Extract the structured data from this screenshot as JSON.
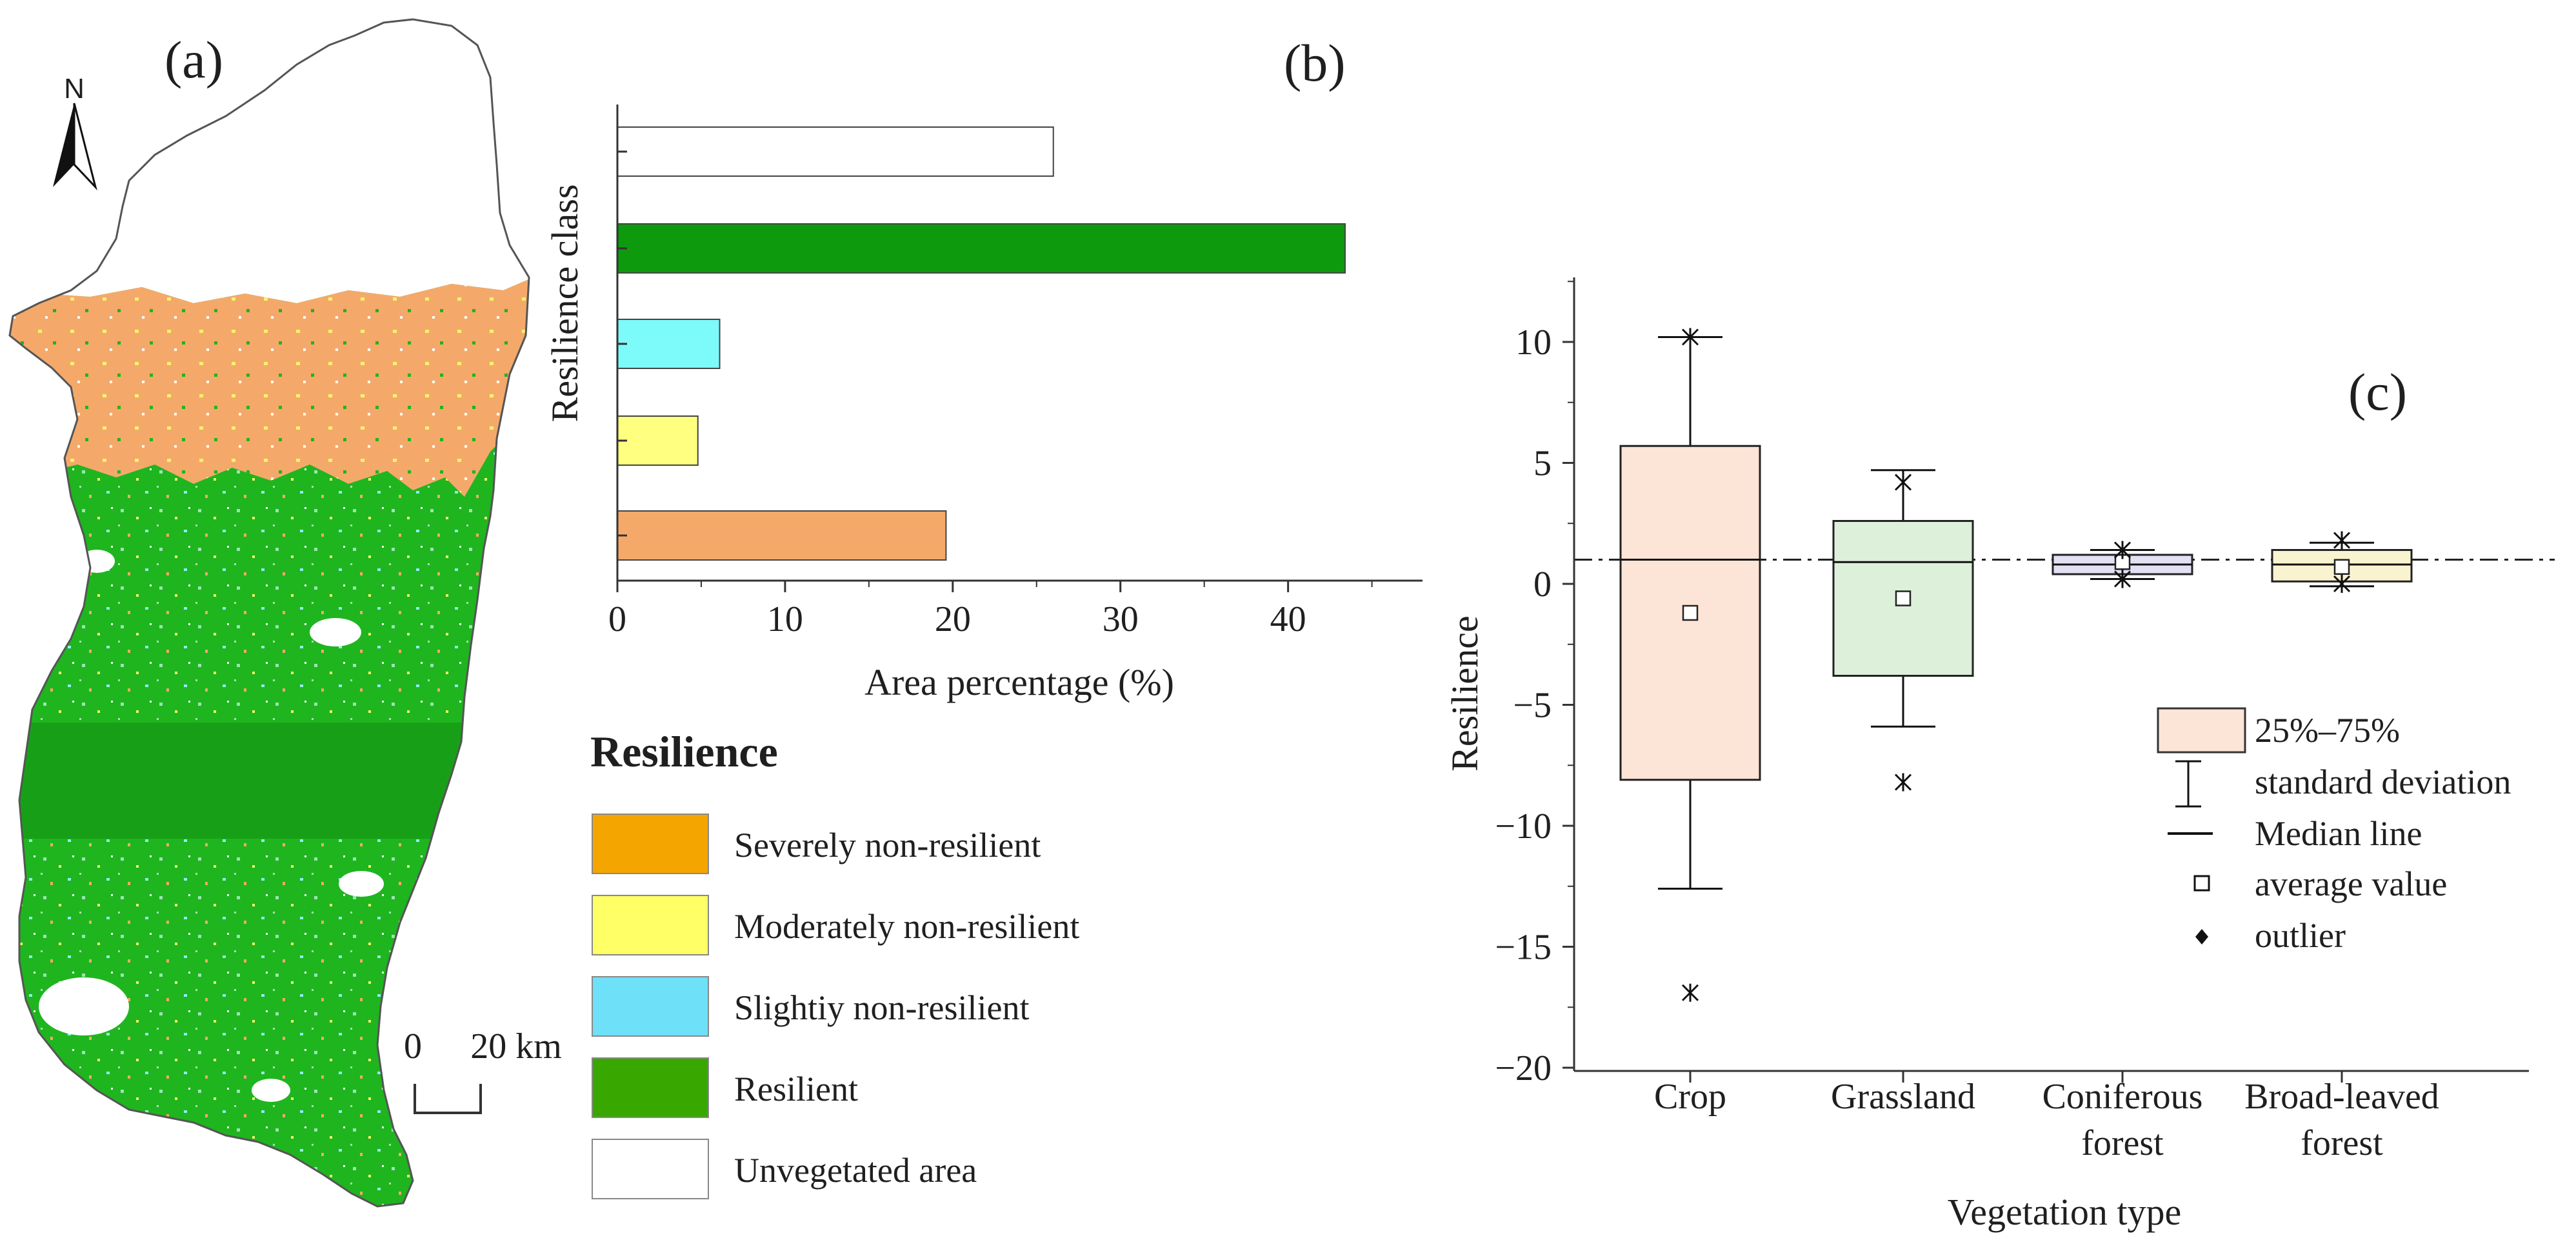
{
  "panel_a": {
    "label": "(a)",
    "north_label": "N",
    "scale_zero": "0",
    "scale_text": "20 km",
    "colors": {
      "severe": "#f4a96a",
      "resilient": "#1fb51f",
      "moderate": "#f5f56a",
      "slight": "#8ff0f5",
      "unvegetated": "#ffffff",
      "outline": "#555555"
    }
  },
  "legend": {
    "title": "Resilience",
    "items": [
      {
        "label": "Severely non-resilient",
        "color": "#f5a500"
      },
      {
        "label": "Moderately non-resilient",
        "color": "#ffff66"
      },
      {
        "label": "Slightiy non-resilient",
        "color": "#6ee0f8"
      },
      {
        "label": "Resilient",
        "color": "#38a800"
      },
      {
        "label": "Unvegetated area",
        "color": "#ffffff"
      }
    ]
  },
  "panel_c": {
    "label": "(c)",
    "legend": {
      "iqr": "25%–75%",
      "sd": "standard deviation",
      "median": "Median line",
      "mean": "average value",
      "outlier": "outlier"
    }
  },
  "chart_data": [
    {
      "panel": "(b)",
      "type": "bar",
      "orientation": "horizontal",
      "title": "",
      "xlabel": "Area percentage (%)",
      "ylabel": "Resilience class",
      "xlim": [
        0,
        48
      ],
      "xticks": [
        0,
        10,
        20,
        30,
        40
      ],
      "categories": [
        "Unvegetated area",
        "Resilient",
        "Slightiy non-resilient",
        "Moderately non-resilient",
        "Severely non-resilient"
      ],
      "values": [
        26,
        43.4,
        6.1,
        4.8,
        19.6
      ],
      "colors": [
        "#ffffff",
        "#0d9a0d",
        "#7dfafa",
        "#ffff80",
        "#f4a96a"
      ]
    },
    {
      "panel": "(c)",
      "type": "box",
      "xlabel": "Vegetation type",
      "ylabel": "Resilience",
      "ylim": [
        -20,
        13
      ],
      "yticks": [
        -20,
        -15,
        -10,
        -5,
        0,
        5,
        10
      ],
      "reference_line": 1,
      "categories": [
        {
          "line1": "Crop",
          "line2": ""
        },
        {
          "line1": "Grassland",
          "line2": ""
        },
        {
          "line1": "Coniferous",
          "line2": "forest"
        },
        {
          "line1": "Broad-leaved",
          "line2": "forest"
        }
      ],
      "boxes": [
        {
          "q1": -8.1,
          "q3": 5.7,
          "median": 1.0,
          "mean": -1.2,
          "sd_low": -12.6,
          "sd_high": 10.2,
          "outliers": [
            10.2,
            -16.9
          ],
          "fill": "#fce4d6"
        },
        {
          "q1": -3.8,
          "q3": 2.6,
          "median": 0.9,
          "mean": -0.6,
          "sd_low": -5.9,
          "sd_high": 4.7,
          "outliers": [
            4.2,
            -8.2
          ],
          "fill": "#ddf0da"
        },
        {
          "q1": 0.4,
          "q3": 1.2,
          "median": 0.8,
          "mean": 0.9,
          "sd_low": 0.2,
          "sd_high": 1.4,
          "outliers": [
            1.4,
            0.2
          ],
          "fill": "#e4e0f4"
        },
        {
          "q1": 0.1,
          "q3": 1.4,
          "median": 0.8,
          "mean": 0.7,
          "sd_low": -0.1,
          "sd_high": 1.7,
          "outliers": [
            1.8,
            0.0
          ],
          "fill": "#faf3cf"
        }
      ]
    }
  ]
}
